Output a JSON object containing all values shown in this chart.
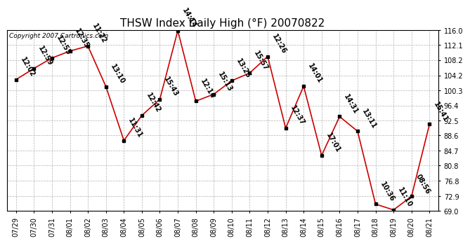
{
  "title": "THSW Index Daily High (°F) 20070822",
  "copyright": "Copyright 2007 Cartronics.com",
  "dates": [
    "07/29",
    "07/30",
    "07/31",
    "08/01",
    "08/02",
    "08/03",
    "08/04",
    "08/05",
    "08/06",
    "08/07",
    "08/08",
    "08/09",
    "08/10",
    "08/11",
    "08/12",
    "08/13",
    "08/14",
    "08/15",
    "08/16",
    "08/17",
    "08/18",
    "08/19",
    "08/20",
    "08/21"
  ],
  "values": [
    103.1,
    106.0,
    108.7,
    110.5,
    111.8,
    101.3,
    87.3,
    93.8,
    98.0,
    115.8,
    97.5,
    99.3,
    102.8,
    104.8,
    109.1,
    90.5,
    101.4,
    83.4,
    93.5,
    89.7,
    70.8,
    69.3,
    72.8,
    91.5
  ],
  "labels": [
    "12:02",
    "12:59",
    "12:55",
    "12:35",
    "11:22",
    "13:10",
    "11:31",
    "12:42",
    "15:43",
    "14:14",
    "12:14",
    "15:13",
    "13:25",
    "15:57",
    "12:26",
    "12:37",
    "14:01",
    "17:01",
    "14:31",
    "13:11",
    "10:36",
    "11:10",
    "08:56",
    "15:41"
  ],
  "ylim_min": 69.0,
  "ylim_max": 116.0,
  "yticks": [
    69.0,
    72.9,
    76.8,
    80.8,
    84.7,
    88.6,
    92.5,
    96.4,
    100.3,
    104.2,
    108.2,
    112.1,
    116.0
  ],
  "line_color": "#cc0000",
  "marker_color": "#000000",
  "background_color": "#ffffff",
  "grid_color": "#aaaaaa",
  "title_fontsize": 11,
  "label_fontsize": 7,
  "tick_fontsize": 7,
  "copyright_fontsize": 6.5
}
